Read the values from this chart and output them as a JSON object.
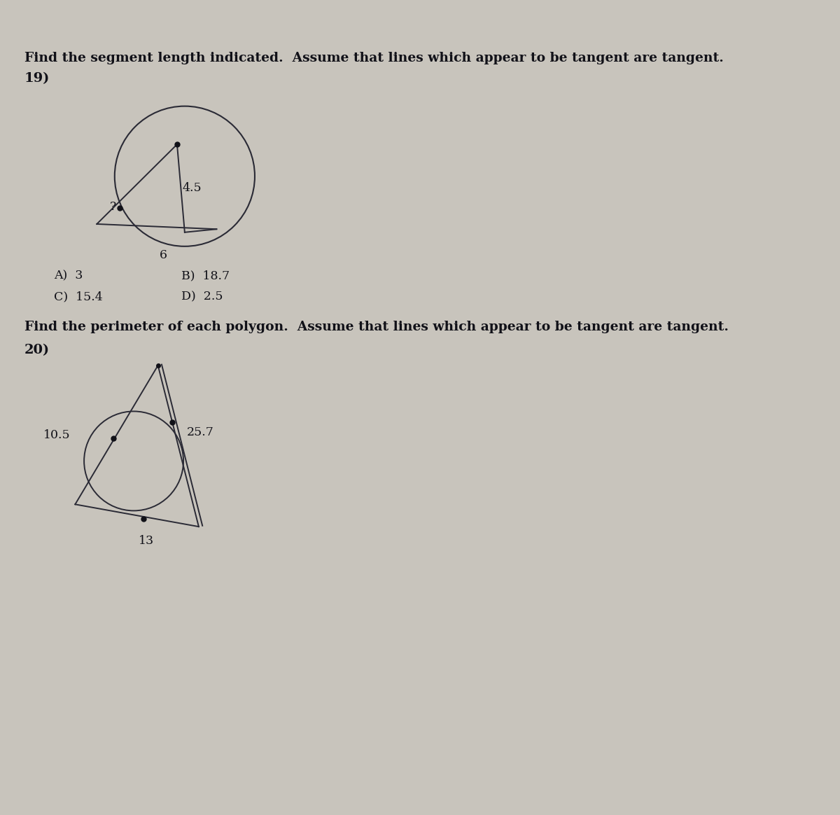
{
  "bg_color": "#c8c4bc",
  "title1": "Find the segment length indicated.  Assume that lines which appear to be tangent are tangent.",
  "q19_label": "19)",
  "q19_ans_A": "A)  3",
  "q19_ans_B": "B)  18.7",
  "q19_ans_C": "C)  15.4",
  "q19_ans_D": "D)  2.5",
  "q19_label_45": "4.5",
  "q19_label_6": "6",
  "q19_label_q": "?",
  "title2": "Find the perimeter of each polygon.  Assume that lines which appear to be tangent are tangent.",
  "q20_label": "20)",
  "q20_label_105": "10.5",
  "q20_label_257": "25.7",
  "q20_label_13": "13",
  "line_color": "#2a2a35",
  "dot_color": "#111118",
  "text_color": "#111118"
}
